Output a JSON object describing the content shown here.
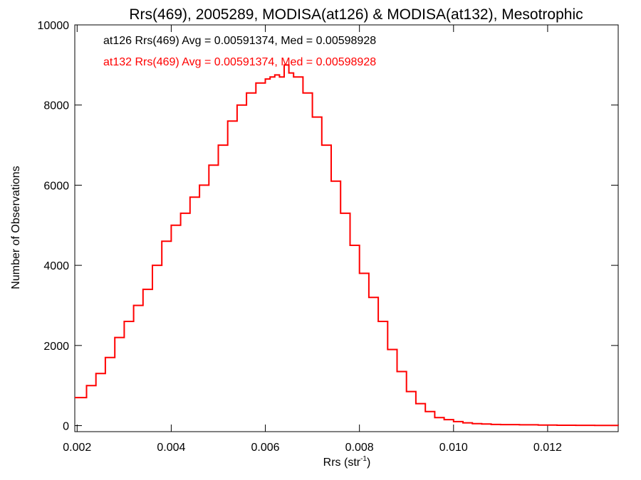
{
  "chart_data": {
    "type": "line",
    "title": "Rrs(469), 2005289, MODISA(at126) & MODISA(at132), Mesotrophic",
    "xlabel": "Rrs (str",
    "xlabel_sup": "-1",
    "xlabel_end": ")",
    "ylabel": "Number of Observations",
    "xlim": [
      0.00195,
      0.0135
    ],
    "ylim": [
      -150,
      10000
    ],
    "xticks": [
      0.002,
      0.004,
      0.006,
      0.008,
      0.01,
      0.012
    ],
    "xtick_labels": [
      "0.002",
      "0.004",
      "0.006",
      "0.008",
      "0.010",
      "0.012"
    ],
    "yticks": [
      0,
      2000,
      4000,
      6000,
      8000,
      10000
    ],
    "ytick_labels": [
      "0",
      "2000",
      "4000",
      "6000",
      "8000",
      "10000"
    ],
    "grid": false,
    "annotations": [
      {
        "text": "at126 Rrs(469) Avg = 0.00591374, Med = 0.00598928",
        "color": "#000000"
      },
      {
        "text": "at132 Rrs(469) Avg = 0.00591374, Med = 0.00598928",
        "color": "#ff0000"
      }
    ],
    "series": [
      {
        "color": "#ff0000",
        "x": [
          0.00195,
          0.0022,
          0.0024,
          0.0026,
          0.0028,
          0.003,
          0.0032,
          0.0034,
          0.0036,
          0.0038,
          0.004,
          0.0042,
          0.0044,
          0.0046,
          0.0048,
          0.005,
          0.0052,
          0.0054,
          0.0056,
          0.0058,
          0.006,
          0.0061,
          0.0062,
          0.0063,
          0.0064,
          0.0065,
          0.0066,
          0.0068,
          0.007,
          0.0072,
          0.0074,
          0.0076,
          0.0078,
          0.008,
          0.0082,
          0.0084,
          0.0086,
          0.0088,
          0.009,
          0.0092,
          0.0094,
          0.0096,
          0.0098,
          0.01,
          0.0102,
          0.0104,
          0.0106,
          0.0108,
          0.011,
          0.0114,
          0.0118,
          0.0122,
          0.0126,
          0.013,
          0.0135
        ],
        "y": [
          700,
          1000,
          1300,
          1700,
          2200,
          2600,
          3000,
          3400,
          4000,
          4600,
          5000,
          5300,
          5700,
          6000,
          6500,
          7000,
          7600,
          8000,
          8300,
          8550,
          8650,
          8700,
          8750,
          8700,
          9000,
          8800,
          8700,
          8300,
          7700,
          7000,
          6100,
          5300,
          4500,
          3800,
          3200,
          2600,
          1900,
          1350,
          850,
          550,
          350,
          200,
          150,
          100,
          70,
          50,
          40,
          30,
          25,
          20,
          15,
          10,
          8,
          5,
          3
        ]
      }
    ]
  }
}
